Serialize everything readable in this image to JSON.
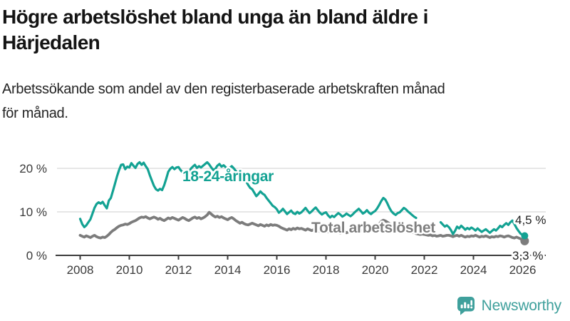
{
  "header": {
    "title": "Högre arbetslöshet bland unga än bland äldre i\nHärjedalen",
    "subtitle": "Arbetssökande som andel av den registerbaserade arbetskraften månad\nför månad."
  },
  "branding": {
    "name": "Newsworthy",
    "icon": "newsworthy-speech-bubble-bar-chart-icon",
    "color": "#3fa09c"
  },
  "chart_data": {
    "type": "line",
    "title": "Högre arbetslöshet bland unga än bland äldre i Härjedalen",
    "x_unit": "month",
    "x_start": "2008-01",
    "x_end": "2026-02",
    "x_ticks": [
      2008,
      2010,
      2012,
      2014,
      2016,
      2018,
      2020,
      2022,
      2024,
      2026
    ],
    "y_ticks": [
      {
        "value": 0,
        "label": "0 %"
      },
      {
        "value": 10,
        "label": "10 %"
      },
      {
        "value": 20,
        "label": "20 %"
      }
    ],
    "ylim": [
      0,
      22.5
    ],
    "grid": true,
    "legend": "inline-labels",
    "colors": {
      "grid": "#dddddd",
      "axis": "#3c3c3c",
      "tick_text": "#3a3a3a",
      "end_label_text": "#1f1f1f"
    },
    "series": [
      {
        "name": "18-24-åringar",
        "color": "#13a293",
        "label": {
          "text": "18-24-åringar",
          "x": 256,
          "y": 254
        },
        "end_label": "4,5 %",
        "end_value": 4.5,
        "values": [
          8.4,
          7.2,
          6.5,
          6.9,
          7.6,
          8.3,
          9.6,
          10.9,
          11.8,
          12.2,
          11.9,
          12.3,
          11.5,
          10.8,
          12.6,
          13.2,
          14.8,
          16.5,
          18.2,
          19.6,
          20.8,
          20.9,
          19.8,
          20.4,
          20.2,
          21.2,
          20.6,
          20.1,
          21.0,
          21.4,
          20.8,
          21.3,
          20.5,
          19.8,
          18.4,
          17.2,
          16.0,
          15.2,
          14.9,
          15.3,
          15.0,
          16.1,
          17.6,
          19.2,
          19.9,
          20.3,
          19.8,
          20.2,
          20.3,
          19.6,
          19.1,
          18.4,
          18.2,
          19.0,
          19.9,
          20.4,
          20.8,
          20.1,
          20.5,
          20.2,
          20.6,
          21.0,
          21.4,
          20.9,
          20.2,
          19.6,
          19.9,
          20.6,
          21.0,
          20.4,
          20.7,
          20.3,
          19.7,
          20.1,
          20.5,
          20.0,
          19.4,
          18.8,
          19.3,
          18.6,
          17.8,
          17.0,
          16.2,
          15.5,
          15.2,
          14.4,
          13.6,
          14.1,
          14.7,
          14.2,
          13.9,
          13.2,
          12.6,
          12.0,
          11.4,
          11.1,
          10.6,
          9.8,
          10.2,
          10.7,
          10.1,
          9.5,
          9.9,
          10.3,
          9.7,
          9.5,
          10.0,
          9.6,
          9.9,
          10.4,
          10.9,
          10.3,
          9.7,
          10.1,
          10.6,
          11.0,
          10.4,
          9.8,
          9.4,
          9.7,
          9.9,
          9.2,
          8.7,
          9.1,
          8.8,
          9.3,
          9.7,
          9.4,
          8.9,
          9.2,
          9.6,
          9.3,
          9.0,
          9.4,
          9.9,
          10.3,
          10.7,
          10.2,
          9.6,
          9.9,
          10.4,
          9.8,
          9.5,
          9.9,
          10.2,
          10.8,
          11.6,
          12.5,
          13.2,
          12.8,
          11.9,
          10.9,
          10.1,
          9.6,
          9.3,
          9.7,
          9.9,
          10.4,
          10.9,
          10.6,
          10.1,
          9.7,
          9.3,
          8.9,
          8.6,
          null,
          null,
          null,
          null,
          null,
          null,
          null,
          null,
          null,
          null,
          null,
          7.6,
          7.1,
          6.6,
          6.9,
          6.5,
          5.8,
          4.9,
          5.6,
          6.6,
          6.2,
          6.8,
          6.4,
          5.9,
          6.3,
          6.0,
          6.4,
          6.1,
          5.7,
          6.2,
          5.8,
          5.4,
          5.7,
          6.0,
          5.6,
          5.2,
          5.6,
          6.0,
          5.7,
          6.2,
          6.8,
          6.5,
          7.0,
          7.4,
          7.0,
          7.6,
          8.0,
          7.2,
          6.3,
          5.6,
          5.0,
          4.7,
          4.5
        ]
      },
      {
        "name": "Total arbetslöshet",
        "color": "#7c7c7c",
        "label": {
          "text": "Total arbetslöshet",
          "x": 437,
          "y": 326
        },
        "end_label": "3,3 %",
        "end_value": 3.3,
        "values": [
          4.6,
          4.4,
          4.2,
          4.5,
          4.3,
          4.1,
          4.4,
          4.6,
          4.3,
          4.1,
          4.0,
          4.2,
          4.1,
          4.4,
          4.8,
          5.3,
          5.7,
          6.0,
          6.4,
          6.7,
          6.9,
          7.0,
          7.2,
          7.1,
          7.3,
          7.6,
          7.8,
          8.0,
          8.3,
          8.6,
          8.8,
          8.7,
          8.9,
          8.6,
          8.4,
          8.6,
          8.8,
          8.6,
          8.3,
          8.5,
          8.2,
          8.0,
          8.3,
          8.6,
          8.4,
          8.7,
          8.5,
          8.3,
          8.1,
          8.4,
          8.7,
          8.5,
          8.2,
          8.0,
          8.3,
          8.6,
          8.8,
          8.5,
          8.7,
          8.4,
          8.6,
          8.9,
          9.3,
          9.9,
          9.5,
          9.1,
          8.8,
          9.0,
          8.7,
          8.9,
          8.6,
          8.4,
          8.2,
          8.5,
          8.7,
          8.4,
          8.0,
          7.7,
          7.4,
          7.6,
          7.3,
          7.1,
          7.0,
          7.2,
          7.4,
          7.2,
          7.0,
          6.8,
          7.1,
          6.9,
          6.7,
          7.0,
          6.8,
          7.1,
          6.9,
          7.0,
          6.9,
          6.7,
          6.4,
          6.2,
          6.0,
          5.8,
          6.1,
          5.9,
          6.2,
          6.0,
          6.3,
          6.1,
          6.2,
          6.0,
          5.8,
          6.1,
          5.9,
          5.7,
          5.9,
          5.6,
          5.8,
          5.5,
          5.7,
          5.9,
          5.6,
          5.4,
          5.6,
          5.3,
          5.5,
          5.2,
          5.4,
          5.1,
          5.3,
          5.5,
          5.2,
          5.4,
          5.3,
          5.5,
          5.7,
          5.4,
          5.6,
          5.8,
          5.5,
          5.7,
          5.9,
          5.6,
          5.8,
          6.0,
          6.2,
          6.5,
          7.2,
          7.8,
          8.1,
          7.9,
          7.6,
          7.3,
          7.0,
          6.8,
          6.6,
          6.7,
          6.5,
          6.3,
          6.1,
          5.9,
          5.7,
          5.5,
          5.3,
          5.2,
          5.0,
          4.9,
          4.8,
          4.9,
          4.8,
          4.7,
          4.6,
          4.7,
          4.5,
          4.6,
          4.4,
          4.5,
          4.6,
          4.4,
          4.5,
          4.6,
          4.6,
          4.5,
          4.3,
          4.5,
          4.6,
          4.4,
          4.6,
          4.4,
          4.2,
          4.4,
          4.3,
          4.5,
          4.4,
          4.6,
          4.4,
          4.2,
          4.4,
          4.3,
          4.5,
          4.3,
          4.1,
          4.3,
          4.2,
          4.4,
          4.3,
          4.5,
          4.4,
          4.2,
          4.4,
          4.5,
          4.3,
          4.1,
          4.0,
          4.2,
          4.0,
          3.8,
          3.5,
          3.3
        ]
      }
    ]
  }
}
